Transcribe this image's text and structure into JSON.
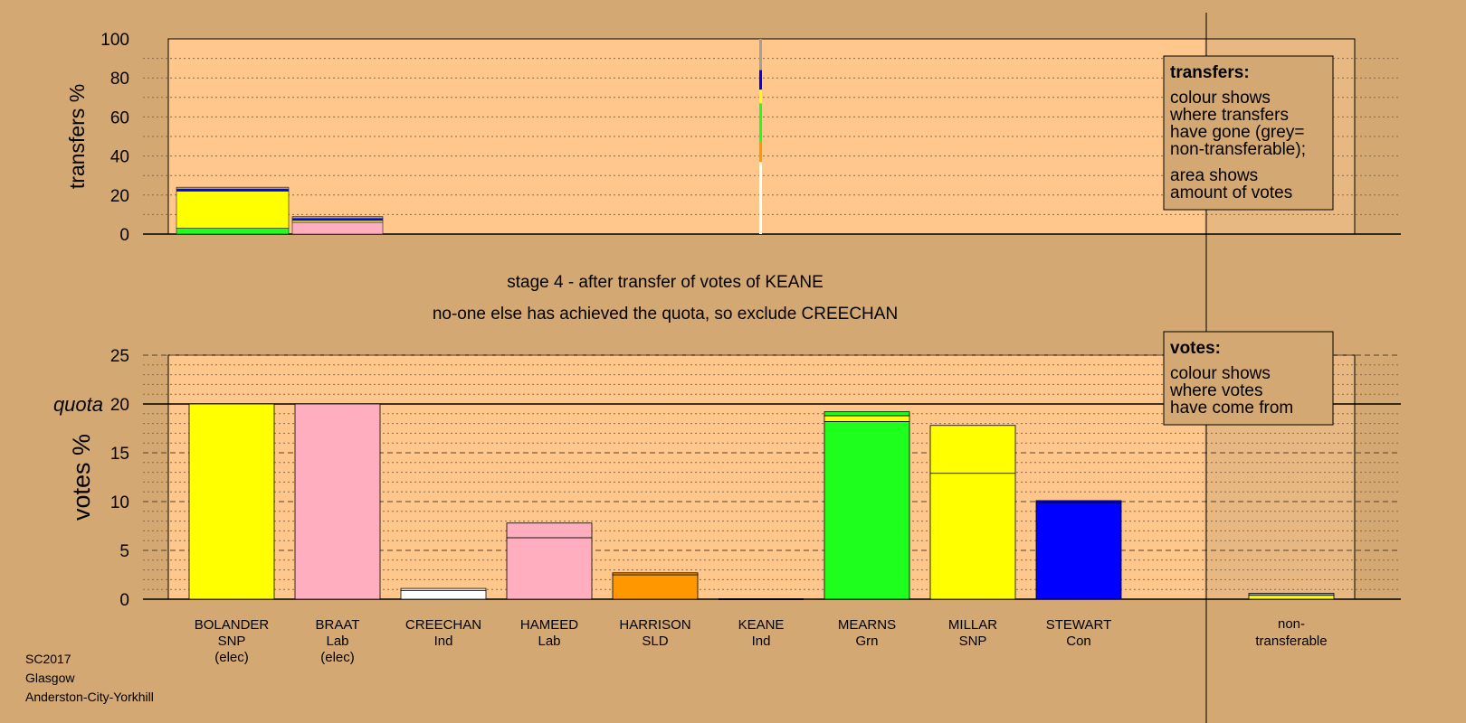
{
  "colors": {
    "background": "#d3a872",
    "plot_area": "#ffc78c",
    "sidebar_area": "#e8b883",
    "SNP": "#ffff00",
    "Lab": "#ffaec0",
    "Ind": "#ffffff",
    "SLD": "#ff9800",
    "Grn": "#1eff1e",
    "Con": "#0000ff",
    "non_transferable": "#a0a0a0"
  },
  "stage_title": "stage 4 - after transfer of votes of KEANE",
  "stage_subtitle": "no-one else has achieved the quota, so exclude CREECHAN",
  "footer": [
    "SC2017",
    "Glasgow",
    "Anderston-City-Yorkhill"
  ],
  "transfers_legend": {
    "title": "transfers:",
    "lines1": [
      "colour shows",
      "where transfers",
      "have gone (grey=",
      "non-transferable);"
    ],
    "lines2": [
      "area shows",
      "amount of votes"
    ]
  },
  "votes_legend": {
    "title": "votes:",
    "lines": [
      "colour shows",
      "where votes",
      "have come from"
    ]
  },
  "chart_data": [
    {
      "type": "bar",
      "ylabel": "transfers %",
      "ylim": [
        0,
        100
      ],
      "yticks": [
        0,
        20,
        40,
        60,
        80,
        100
      ],
      "grid": true,
      "bars": [
        {
          "segments": [
            {
              "party": "Grn",
              "value": 3
            },
            {
              "party": "SNP",
              "value": 19
            },
            {
              "party": "Con",
              "value": 1
            },
            {
              "party": "non_transferable",
              "value": 1
            }
          ]
        },
        {
          "segments": [
            {
              "party": "Lab",
              "value": 6
            },
            {
              "party": "SNP",
              "value": 1
            },
            {
              "party": "Con",
              "value": 1
            },
            {
              "party": "non_transferable",
              "value": 1
            }
          ]
        }
      ],
      "source_column": {
        "segments": [
          {
            "party": "Ind",
            "value": 37
          },
          {
            "party": "SLD",
            "value": 10
          },
          {
            "party": "Grn",
            "value": 20
          },
          {
            "party": "SNP",
            "value": 7
          },
          {
            "party": "Con",
            "value": 10
          },
          {
            "party": "non_transferable",
            "value": 16
          }
        ]
      }
    },
    {
      "type": "bar",
      "ylabel": "votes %",
      "ylim": [
        0,
        25
      ],
      "yticks": [
        0,
        5,
        10,
        15,
        20,
        25
      ],
      "quota": 20,
      "quota_label": "quota",
      "grid": true,
      "categories": [
        {
          "name": "BOLANDER",
          "party": "SNP",
          "note": "(elec)"
        },
        {
          "name": "BRAAT",
          "party": "Lab",
          "note": "(elec)"
        },
        {
          "name": "CREECHAN",
          "party": "Ind",
          "note": ""
        },
        {
          "name": "HAMEED",
          "party": "Lab",
          "note": ""
        },
        {
          "name": "HARRISON",
          "party": "SLD",
          "note": ""
        },
        {
          "name": "KEANE",
          "party": "Ind",
          "note": ""
        },
        {
          "name": "MEARNS",
          "party": "Grn",
          "note": ""
        },
        {
          "name": "MILLAR",
          "party": "SNP",
          "note": ""
        },
        {
          "name": "STEWART",
          "party": "Con",
          "note": ""
        }
      ],
      "series": [
        {
          "candidate": "BOLANDER",
          "segments": [
            {
              "party": "SNP",
              "value": 20.0
            }
          ]
        },
        {
          "candidate": "BRAAT",
          "segments": [
            {
              "party": "Lab",
              "value": 20.0
            }
          ]
        },
        {
          "candidate": "CREECHAN",
          "segments": [
            {
              "party": "Ind",
              "value": 0.9
            },
            {
              "party": "Ind",
              "value": 0.2
            }
          ]
        },
        {
          "candidate": "HAMEED",
          "segments": [
            {
              "party": "Lab",
              "value": 6.3
            },
            {
              "party": "Lab",
              "value": 1.5
            }
          ]
        },
        {
          "candidate": "HARRISON",
          "segments": [
            {
              "party": "SLD",
              "value": 2.5
            },
            {
              "party": "SLD",
              "value": 0.2
            }
          ]
        },
        {
          "candidate": "KEANE",
          "segments": []
        },
        {
          "candidate": "MEARNS",
          "segments": [
            {
              "party": "Grn",
              "value": 18.2
            },
            {
              "party": "SNP",
              "value": 0.6
            },
            {
              "party": "Grn",
              "value": 0.4
            }
          ]
        },
        {
          "candidate": "MILLAR",
          "segments": [
            {
              "party": "SNP",
              "value": 12.9
            },
            {
              "party": "SNP",
              "value": 4.9
            }
          ]
        },
        {
          "candidate": "STEWART",
          "segments": [
            {
              "party": "Con",
              "value": 9.9
            },
            {
              "party": "Con",
              "value": 0.2
            }
          ]
        }
      ],
      "non_transferable": {
        "label": [
          "non-",
          "transferable"
        ],
        "segments": [
          {
            "party": "SNP",
            "value": 0.4
          },
          {
            "party": "non_transferable",
            "value": 0.2
          }
        ]
      }
    }
  ]
}
